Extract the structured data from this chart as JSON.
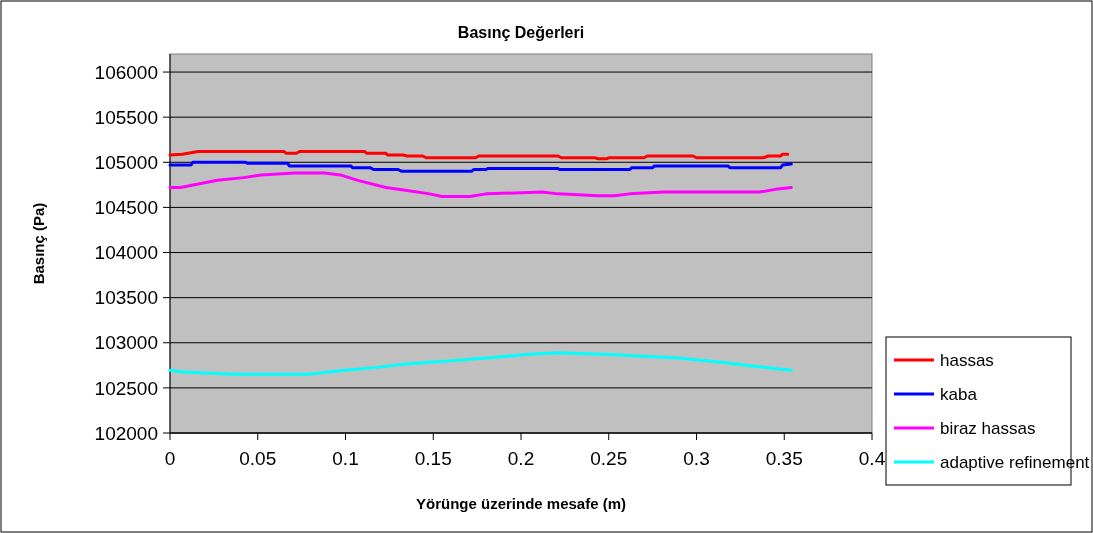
{
  "chart_data": {
    "type": "line",
    "title": "Basınç Değerleri",
    "xlabel": "Yörünge üzerinde mesafe (m)",
    "ylabel": "Basınç (Pa)",
    "xlim": [
      0,
      0.4
    ],
    "xticks": [
      0,
      0.05,
      0.1,
      0.15,
      0.2,
      0.25,
      0.3,
      0.35,
      0.4
    ],
    "ylim": [
      102000,
      106200
    ],
    "yticks": [
      102000,
      102500,
      103000,
      103500,
      104000,
      104500,
      105000,
      105500,
      106000
    ],
    "grid": "y",
    "legend": "right",
    "marker": "none",
    "line_style": "solid",
    "series": [
      {
        "name": "hassas",
        "color": "#ff0000",
        "x": [
          0,
          0.007,
          0.016,
          0.065,
          0.066,
          0.072,
          0.074,
          0.111,
          0.112,
          0.123,
          0.124,
          0.133,
          0.135,
          0.144,
          0.146,
          0.174,
          0.176,
          0.221,
          0.223,
          0.242,
          0.244,
          0.249,
          0.25,
          0.27,
          0.272,
          0.298,
          0.3,
          0.338,
          0.341,
          0.348,
          0.349,
          0.352
        ],
        "values": [
          105080,
          105090,
          105120,
          105120,
          105100,
          105100,
          105120,
          105120,
          105100,
          105100,
          105080,
          105080,
          105070,
          105070,
          105050,
          105050,
          105070,
          105070,
          105050,
          105050,
          105040,
          105040,
          105050,
          105050,
          105070,
          105070,
          105050,
          105050,
          105070,
          105070,
          105090,
          105090
        ]
      },
      {
        "name": "kaba",
        "color": "#0000ff",
        "x": [
          0,
          0.012,
          0.013,
          0.043,
          0.044,
          0.067,
          0.068,
          0.103,
          0.104,
          0.114,
          0.116,
          0.13,
          0.132,
          0.172,
          0.173,
          0.18,
          0.181,
          0.221,
          0.222,
          0.262,
          0.263,
          0.275,
          0.276,
          0.318,
          0.319,
          0.348,
          0.349,
          0.354
        ],
        "values": [
          104970,
          104970,
          105000,
          105000,
          104990,
          104990,
          104960,
          104960,
          104940,
          104940,
          104920,
          104920,
          104900,
          104900,
          104920,
          104920,
          104930,
          104930,
          104920,
          104920,
          104940,
          104940,
          104960,
          104960,
          104940,
          104940,
          104970,
          104980
        ]
      },
      {
        "name": "biraz hassas",
        "color": "#ff00ff",
        "x": [
          0,
          0.006,
          0.027,
          0.042,
          0.052,
          0.071,
          0.088,
          0.097,
          0.107,
          0.123,
          0.134,
          0.148,
          0.155,
          0.171,
          0.18,
          0.212,
          0.221,
          0.244,
          0.253,
          0.262,
          0.281,
          0.336,
          0.345,
          0.354
        ],
        "values": [
          104720,
          104720,
          104800,
          104830,
          104860,
          104880,
          104880,
          104860,
          104800,
          104720,
          104690,
          104650,
          104620,
          104620,
          104650,
          104670,
          104650,
          104630,
          104630,
          104650,
          104670,
          104670,
          104700,
          104720
        ]
      },
      {
        "name": "adaptive refinement",
        "color": "#00ffff",
        "x": [
          0,
          0.006,
          0.02,
          0.037,
          0.044,
          0.079,
          0.088,
          0.097,
          0.119,
          0.134,
          0.157,
          0.18,
          0.203,
          0.221,
          0.25,
          0.29,
          0.314,
          0.333,
          0.354
        ],
        "values": [
          102695,
          102680,
          102665,
          102650,
          102650,
          102650,
          102670,
          102690,
          102730,
          102765,
          102795,
          102830,
          102870,
          102890,
          102870,
          102830,
          102785,
          102740,
          102695
        ]
      }
    ]
  }
}
